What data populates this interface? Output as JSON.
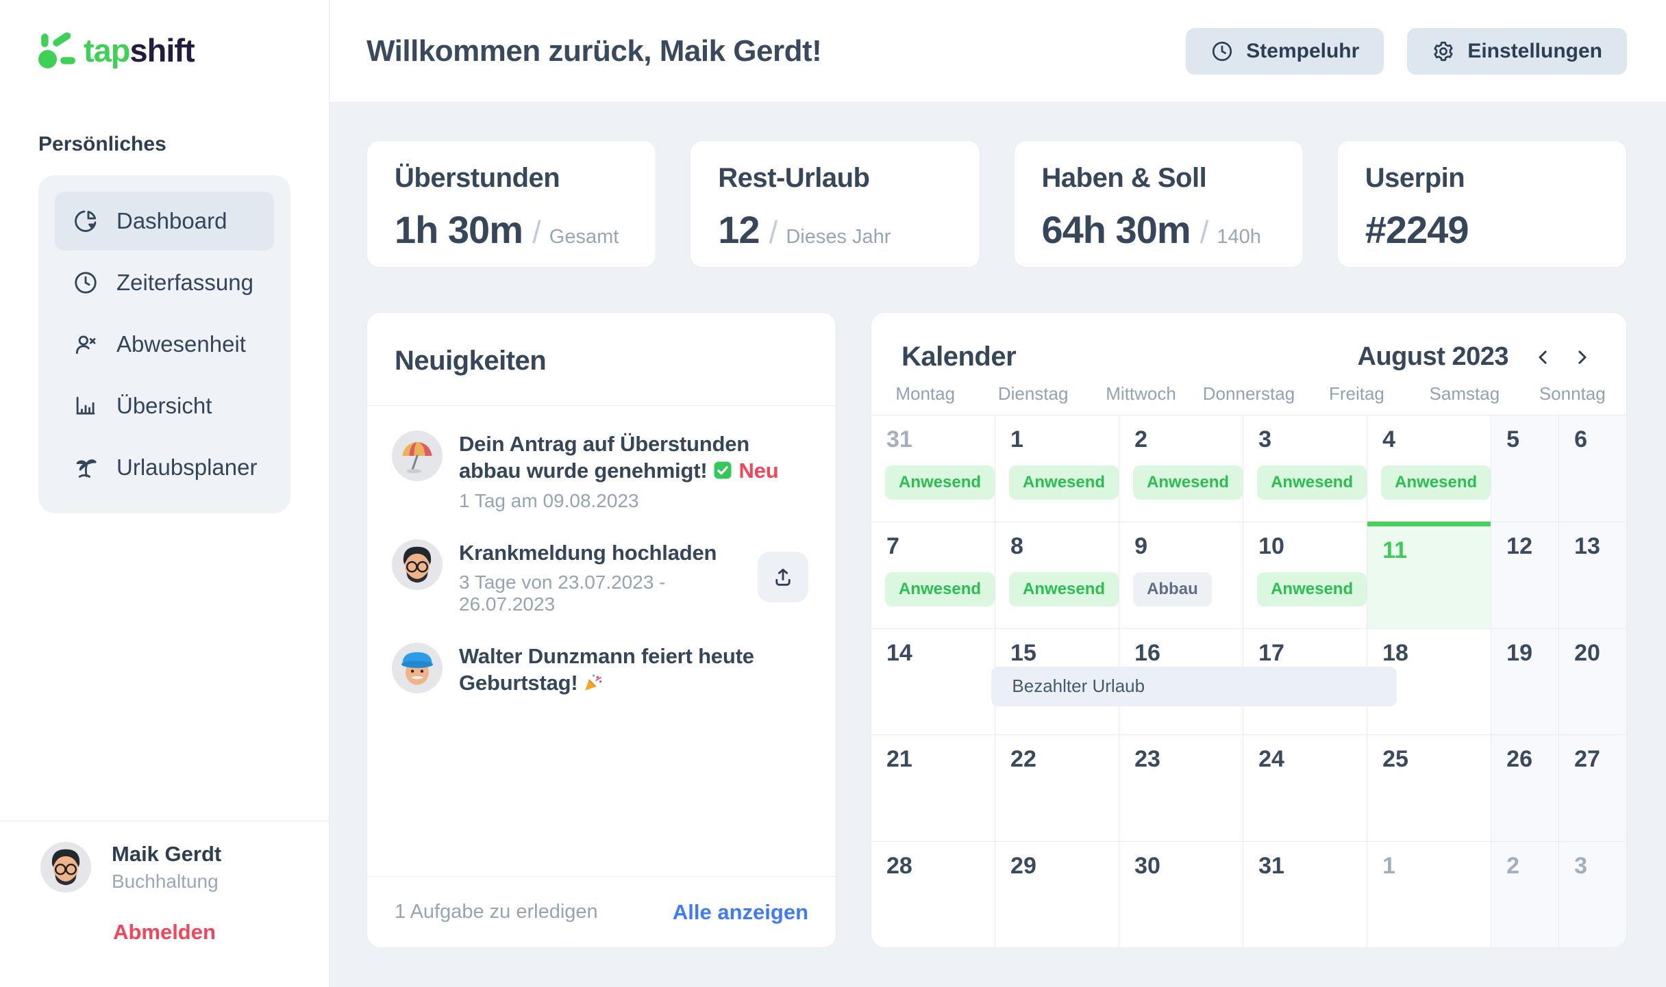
{
  "brand": {
    "name_green": "tap",
    "name_dark": "shift"
  },
  "sidebar": {
    "section_label": "Persönliches",
    "items": [
      {
        "label": "Dashboard",
        "icon": "pie-chart",
        "active": true
      },
      {
        "label": "Zeiterfassung",
        "icon": "clock",
        "active": false
      },
      {
        "label": "Abwesenheit",
        "icon": "user-x",
        "active": false
      },
      {
        "label": "Übersicht",
        "icon": "bar-chart",
        "active": false
      },
      {
        "label": "Urlaubsplaner",
        "icon": "palm-tree",
        "active": false
      }
    ],
    "user": {
      "name": "Maik Gerdt",
      "role": "Buchhaltung"
    },
    "logout_label": "Abmelden"
  },
  "header": {
    "welcome": "Willkommen zurück, Maik Gerdt!",
    "buttons": [
      {
        "label": "Stempeluhr",
        "icon": "clock"
      },
      {
        "label": "Einstellungen",
        "icon": "gear"
      }
    ]
  },
  "stats": [
    {
      "title": "Überstunden",
      "value": "1h 30m",
      "suffix": "Gesamt"
    },
    {
      "title": "Rest-Urlaub",
      "value": "12",
      "suffix": "Dieses Jahr"
    },
    {
      "title": "Haben & Soll",
      "value": "64h 30m",
      "suffix": "140h"
    },
    {
      "title": "Userpin",
      "value": "#2249",
      "suffix": ""
    }
  ],
  "news": {
    "title": "Neuigkeiten",
    "items": [
      {
        "title": "Dein Antrag auf Überstunden abbau wurde genehmigt!",
        "check_icon": true,
        "new_label": "Neu",
        "meta": "1 Tag am 09.08.2023",
        "avatar": "umbrella",
        "action": null
      },
      {
        "title": "Krankmeldung hochladen",
        "check_icon": false,
        "new_label": "",
        "meta": "3 Tage von 23.07.2023 - 26.07.2023",
        "avatar": "man-glasses",
        "action": "upload"
      },
      {
        "title": "Walter Dunzmann feiert heute Geburtstag!",
        "check_icon": false,
        "new_label": "",
        "party_icon": true,
        "meta": "",
        "avatar": "man-hat",
        "action": null
      }
    ],
    "footer_left": "1 Aufgabe zu erledigen",
    "footer_link": "Alle anzeigen"
  },
  "calendar": {
    "title": "Kalender",
    "month_label": "August 2023",
    "weekdays": [
      "Montag",
      "Dienstag",
      "Mittwoch",
      "Donnerstag",
      "Freitag",
      "Samstag",
      "Sonntag"
    ],
    "days": [
      {
        "d": "31",
        "muted": true,
        "badge": "Anwesend",
        "badge_type": "present",
        "today": false
      },
      {
        "d": "1",
        "muted": false,
        "badge": "Anwesend",
        "badge_type": "present",
        "today": false
      },
      {
        "d": "2",
        "muted": false,
        "badge": "Anwesend",
        "badge_type": "present",
        "today": false
      },
      {
        "d": "3",
        "muted": false,
        "badge": "Anwesend",
        "badge_type": "present",
        "today": false
      },
      {
        "d": "4",
        "muted": false,
        "badge": "Anwesend",
        "badge_type": "present",
        "today": false
      },
      {
        "d": "5",
        "muted": false,
        "badge": "",
        "badge_type": "",
        "today": false
      },
      {
        "d": "6",
        "muted": false,
        "badge": "",
        "badge_type": "",
        "today": false
      },
      {
        "d": "7",
        "muted": false,
        "badge": "Anwesend",
        "badge_type": "present",
        "today": false
      },
      {
        "d": "8",
        "muted": false,
        "badge": "Anwesend",
        "badge_type": "present",
        "today": false
      },
      {
        "d": "9",
        "muted": false,
        "badge": "Abbau",
        "badge_type": "reduction",
        "today": false
      },
      {
        "d": "10",
        "muted": false,
        "badge": "Anwesend",
        "badge_type": "present",
        "today": false
      },
      {
        "d": "11",
        "muted": false,
        "badge": "",
        "badge_type": "",
        "today": true
      },
      {
        "d": "12",
        "muted": false,
        "badge": "",
        "badge_type": "",
        "today": false
      },
      {
        "d": "13",
        "muted": false,
        "badge": "",
        "badge_type": "",
        "today": false
      },
      {
        "d": "14",
        "muted": false,
        "badge": "",
        "badge_type": "",
        "today": false
      },
      {
        "d": "15",
        "muted": false,
        "badge": "",
        "badge_type": "",
        "today": false
      },
      {
        "d": "16",
        "muted": false,
        "badge": "",
        "badge_type": "",
        "today": false
      },
      {
        "d": "17",
        "muted": false,
        "badge": "",
        "badge_type": "",
        "today": false
      },
      {
        "d": "18",
        "muted": false,
        "badge": "",
        "badge_type": "",
        "today": false
      },
      {
        "d": "19",
        "muted": false,
        "badge": "",
        "badge_type": "",
        "today": false
      },
      {
        "d": "20",
        "muted": false,
        "badge": "",
        "badge_type": "",
        "today": false
      },
      {
        "d": "21",
        "muted": false,
        "badge": "",
        "badge_type": "",
        "today": false
      },
      {
        "d": "22",
        "muted": false,
        "badge": "",
        "badge_type": "",
        "today": false
      },
      {
        "d": "23",
        "muted": false,
        "badge": "",
        "badge_type": "",
        "today": false
      },
      {
        "d": "24",
        "muted": false,
        "badge": "",
        "badge_type": "",
        "today": false
      },
      {
        "d": "25",
        "muted": false,
        "badge": "",
        "badge_type": "",
        "today": false
      },
      {
        "d": "26",
        "muted": false,
        "badge": "",
        "badge_type": "",
        "today": false
      },
      {
        "d": "27",
        "muted": false,
        "badge": "",
        "badge_type": "",
        "today": false
      },
      {
        "d": "28",
        "muted": false,
        "badge": "",
        "badge_type": "",
        "today": false
      },
      {
        "d": "29",
        "muted": false,
        "badge": "",
        "badge_type": "",
        "today": false
      },
      {
        "d": "30",
        "muted": false,
        "badge": "",
        "badge_type": "",
        "today": false
      },
      {
        "d": "31",
        "muted": false,
        "badge": "",
        "badge_type": "",
        "today": false
      },
      {
        "d": "1",
        "muted": true,
        "badge": "",
        "badge_type": "",
        "today": false
      },
      {
        "d": "2",
        "muted": true,
        "badge": "",
        "badge_type": "",
        "today": false
      },
      {
        "d": "3",
        "muted": true,
        "badge": "",
        "badge_type": "",
        "today": false
      }
    ],
    "span_event": {
      "label": "Bezahlter Urlaub",
      "week_row": 2,
      "col_start": 1,
      "col_span": 4
    }
  },
  "colors": {
    "brand_green": "#3ED155",
    "logo_navy": "#201D40",
    "text_dark": "#36475C",
    "text_muted": "#97A4B5",
    "badge_green_bg": "#DCF7E0",
    "badge_green_text": "#2BBE51",
    "pill_gray_bg": "#EDF1F6",
    "today_green": "#45D15C",
    "link_blue": "#3D7BFA",
    "logout_red": "#F2455A",
    "page_bg": "#EEF2F7"
  }
}
